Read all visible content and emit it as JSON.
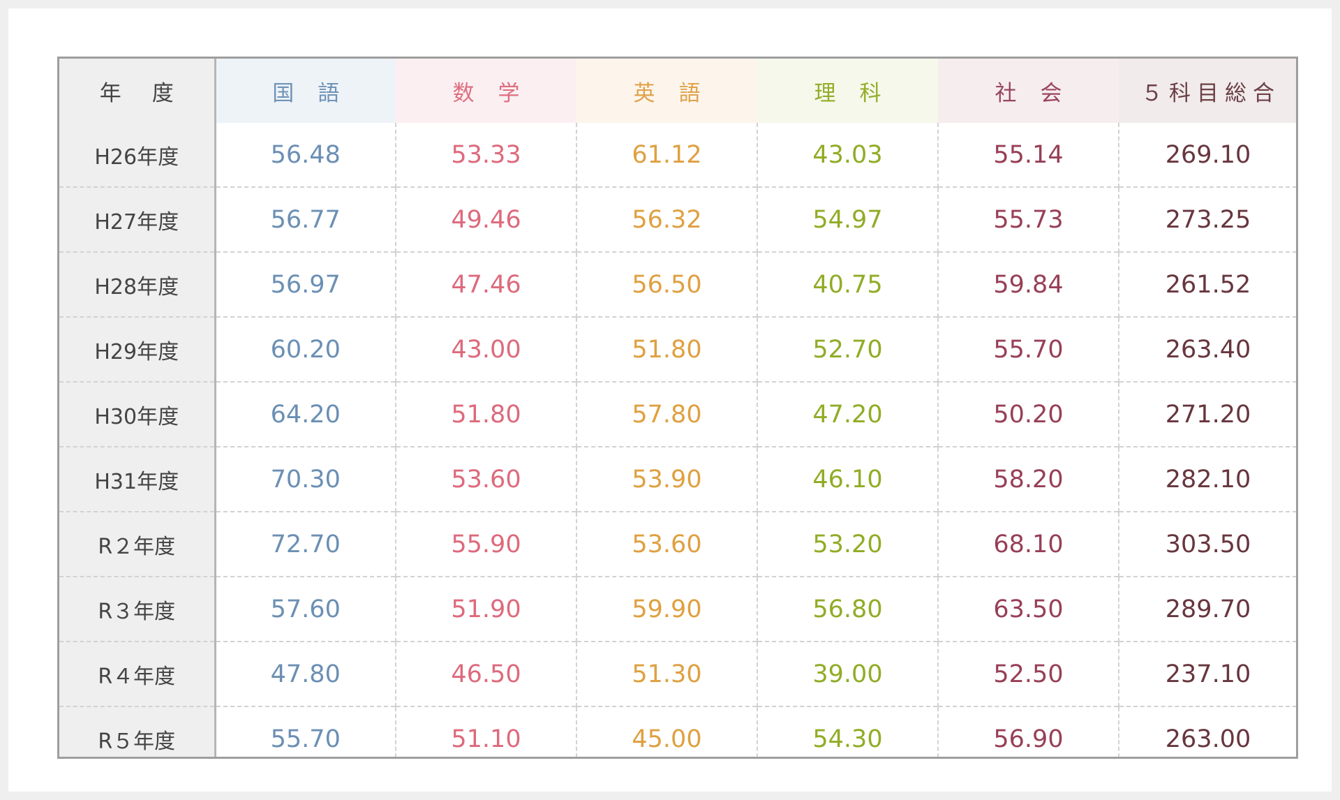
{
  "table": {
    "headers": {
      "year": "年度",
      "subjects": [
        "国語",
        "数学",
        "英語",
        "理科",
        "社会"
      ],
      "total": "５科目総合"
    },
    "rows": [
      {
        "year": "H26年度",
        "scores": [
          "56.48",
          "53.33",
          "61.12",
          "43.03",
          "55.14"
        ],
        "total": "269.10"
      },
      {
        "year": "H27年度",
        "scores": [
          "56.77",
          "49.46",
          "56.32",
          "54.97",
          "55.73"
        ],
        "total": "273.25"
      },
      {
        "year": "H28年度",
        "scores": [
          "56.97",
          "47.46",
          "56.50",
          "40.75",
          "59.84"
        ],
        "total": "261.52"
      },
      {
        "year": "H29年度",
        "scores": [
          "60.20",
          "43.00",
          "51.80",
          "52.70",
          "55.70"
        ],
        "total": "263.40"
      },
      {
        "year": "H30年度",
        "scores": [
          "64.20",
          "51.80",
          "57.80",
          "47.20",
          "50.20"
        ],
        "total": "271.20"
      },
      {
        "year": "H31年度",
        "scores": [
          "70.30",
          "53.60",
          "53.90",
          "46.10",
          "58.20"
        ],
        "total": "282.10"
      },
      {
        "year": "R２年度",
        "scores": [
          "72.70",
          "55.90",
          "53.60",
          "53.20",
          "68.10"
        ],
        "total": "303.50"
      },
      {
        "year": "R３年度",
        "scores": [
          "57.60",
          "51.90",
          "59.90",
          "56.80",
          "63.50"
        ],
        "total": "289.70"
      },
      {
        "year": "R４年度",
        "scores": [
          "47.80",
          "46.50",
          "51.30",
          "39.00",
          "52.50"
        ],
        "total": "237.10"
      },
      {
        "year": "R５年度",
        "scores": [
          "55.70",
          "51.10",
          "45.00",
          "54.30",
          "56.90"
        ],
        "total": "263.00"
      }
    ]
  },
  "colors": {
    "kokugo": "#6b8fb4",
    "sugaku": "#dd6a7c",
    "eigo": "#dfa040",
    "rika": "#90ac25",
    "shakai": "#973f56",
    "total": "#67363e"
  }
}
